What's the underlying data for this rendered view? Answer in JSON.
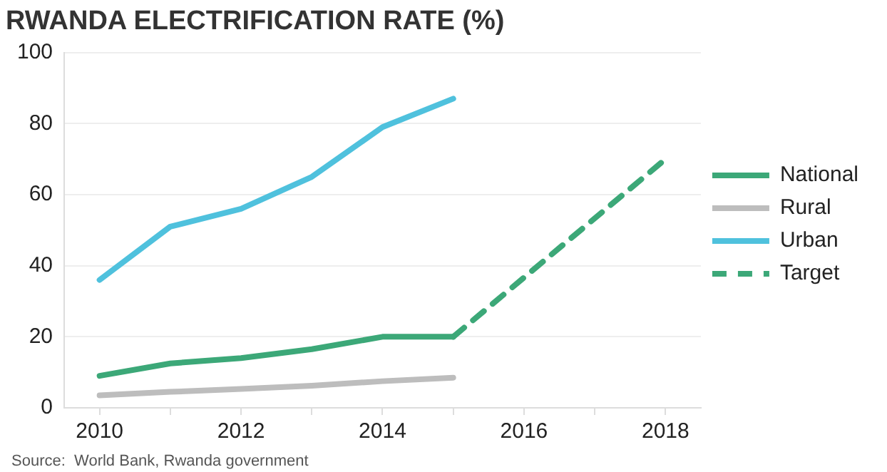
{
  "chart_data": {
    "type": "line",
    "title": "RWANDA ELECTRIFICATION RATE (%)",
    "x": [
      2010,
      2011,
      2012,
      2013,
      2014,
      2015
    ],
    "series": [
      {
        "name": "National",
        "color": "#3ca878",
        "values": [
          9,
          12.5,
          14,
          16.5,
          20,
          20
        ]
      },
      {
        "name": "Rural",
        "color": "#bdbdbd",
        "values": [
          3.5,
          4.5,
          5.3,
          6.2,
          7.5,
          8.5
        ]
      },
      {
        "name": "Urban",
        "color": "#4fc1dd",
        "values": [
          36,
          51,
          56,
          65,
          79,
          87
        ]
      },
      {
        "name": "Target",
        "color": "#3ca878",
        "x": [
          2015,
          2018
        ],
        "values": [
          20,
          70
        ],
        "line_style": "dashed"
      }
    ],
    "xlim": [
      2009.5,
      2018.5
    ],
    "xticks": [
      2010,
      {
        "value": 2011,
        "label": null
      },
      2012,
      {
        "value": 2013,
        "label": null
      },
      2014,
      {
        "value": 2015,
        "label": null
      },
      2016,
      {
        "value": 2017,
        "label": null
      },
      2018
    ],
    "ylim": [
      0,
      100
    ],
    "yticks": [
      0,
      20,
      40,
      60,
      80,
      100
    ],
    "grid": "y",
    "legend": "right",
    "marker": "none",
    "line_style": "solid",
    "annotations": [
      "Source:  World Bank, Rwanda government"
    ]
  }
}
